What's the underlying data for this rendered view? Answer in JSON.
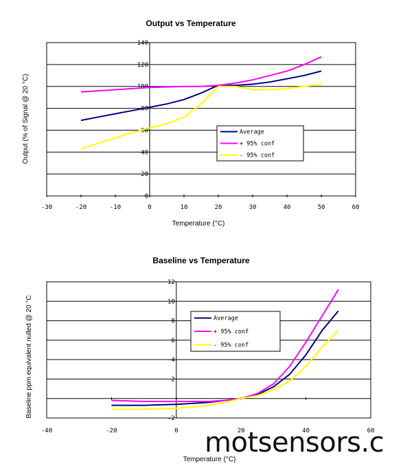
{
  "watermark": "motsensors.c",
  "chart_data": [
    {
      "type": "line",
      "title": "Output vs Temperature",
      "xlabel": "Temperature (°C)",
      "ylabel": "Output (% of Signal @ 20 °C)",
      "xlim": [
        -30,
        60
      ],
      "ylim": [
        0,
        140
      ],
      "xticks": [
        "-30",
        "-20",
        "-10",
        "0",
        "10",
        "20",
        "30",
        "40",
        "50",
        "60"
      ],
      "yticks": [
        "0",
        "20",
        "40",
        "60",
        "80",
        "100",
        "120",
        "140"
      ],
      "grid": true,
      "legend": "lower-right",
      "series": [
        {
          "name": "Average",
          "color": "#000080",
          "x": [
            -20,
            -15,
            -10,
            -5,
            0,
            5,
            10,
            15,
            20,
            25,
            30,
            35,
            40,
            45,
            50
          ],
          "y": [
            69,
            72,
            75,
            78,
            81,
            84,
            88,
            94,
            101,
            101,
            102,
            104,
            107,
            110,
            114
          ]
        },
        {
          "name": "+ 95% conf",
          "color": "#ff00ff",
          "x": [
            -20,
            -15,
            -10,
            -5,
            0,
            5,
            10,
            15,
            20,
            25,
            30,
            35,
            40,
            45,
            50
          ],
          "y": [
            95,
            96,
            97,
            98,
            99,
            99.5,
            100,
            100,
            101,
            103,
            106,
            110,
            114,
            120,
            127
          ]
        },
        {
          "name": "- 95% conf",
          "color": "#ffff00",
          "x": [
            -20,
            -15,
            -10,
            -5,
            0,
            5,
            10,
            15,
            20,
            25,
            30,
            35,
            40,
            45,
            50
          ],
          "y": [
            43,
            48,
            53,
            58,
            62,
            66,
            72,
            84,
            100,
            100,
            97,
            97,
            98,
            100,
            102
          ]
        }
      ]
    },
    {
      "type": "line",
      "title": "Baseline vs Temperature",
      "xlabel": "Temperature (°C)",
      "ylabel": "Baseline ppm equivalent nulled @ 20 °C",
      "xlim": [
        -40,
        60
      ],
      "ylim": [
        -2,
        12
      ],
      "xticks": [
        "-40",
        "-20",
        "0",
        "20",
        "40",
        "60"
      ],
      "yticks": [
        "-2",
        "2",
        "4",
        "6",
        "8",
        "10",
        "12"
      ],
      "grid": true,
      "legend": "upper-middle",
      "series": [
        {
          "name": "Average",
          "color": "#000080",
          "x": [
            -20,
            -10,
            0,
            10,
            15,
            20,
            25,
            30,
            35,
            40,
            45,
            50
          ],
          "y": [
            -0.7,
            -0.7,
            -0.6,
            -0.4,
            -0.2,
            0,
            0.4,
            1.2,
            2.5,
            4.5,
            7,
            9
          ]
        },
        {
          "name": "+ 95% conf",
          "color": "#ff00ff",
          "x": [
            -20,
            -10,
            0,
            10,
            15,
            20,
            25,
            30,
            35,
            40,
            45,
            50
          ],
          "y": [
            -0.2,
            -0.3,
            -0.3,
            -0.3,
            -0.2,
            0,
            0.5,
            1.5,
            3.3,
            5.8,
            8.5,
            11.2
          ]
        },
        {
          "name": "- 95% conf",
          "color": "#ffff00",
          "x": [
            -20,
            -10,
            0,
            10,
            15,
            20,
            25,
            30,
            35,
            40,
            45,
            50
          ],
          "y": [
            -1.1,
            -1.1,
            -1,
            -0.7,
            -0.4,
            0,
            0.3,
            0.9,
            1.8,
            3.3,
            5.3,
            7
          ]
        }
      ]
    }
  ]
}
